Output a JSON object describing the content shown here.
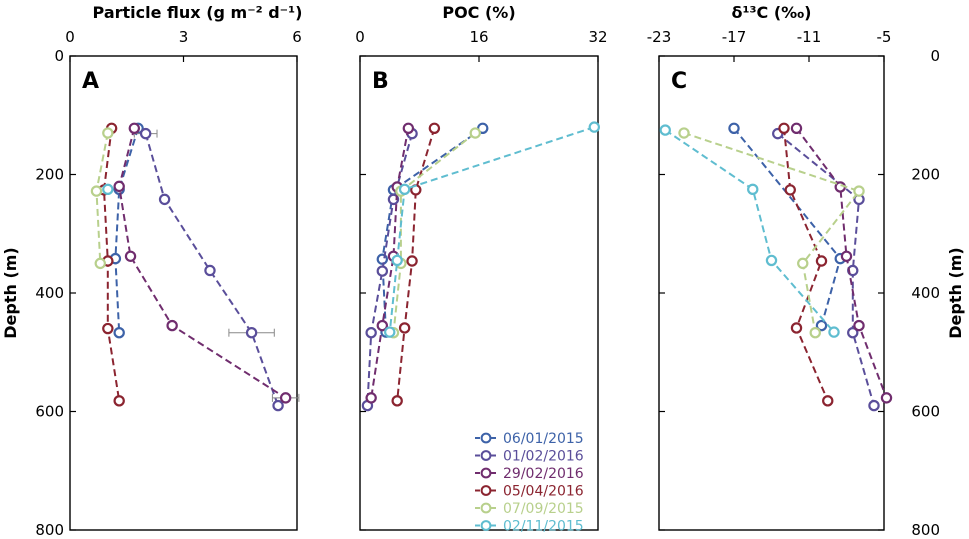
{
  "chart_data": {
    "type": "line",
    "ylabel": "Depth (m)",
    "ylim": [
      0,
      800
    ],
    "yticks": [
      0,
      200,
      400,
      600,
      800
    ],
    "yticklabels": [
      "0",
      "200",
      "400",
      "600",
      "800"
    ],
    "legend_location": "bottom-right of panel B",
    "series_meta": [
      {
        "name": "06/01/2015",
        "color": "#3d62a8"
      },
      {
        "name": "01/02/2016",
        "color": "#5a4e9a"
      },
      {
        "name": "29/02/2016",
        "color": "#702d6e"
      },
      {
        "name": "05/04/2016",
        "color": "#8b2430"
      },
      {
        "name": "07/09/2015",
        "color": "#b8d08c"
      },
      {
        "name": "02/11/2015",
        "color": "#5fbdd0"
      }
    ],
    "panels": [
      {
        "label": "A",
        "title": "Particle flux (g m⁻² d⁻¹)",
        "xlim": [
          0,
          6
        ],
        "xticks": [
          0,
          3,
          6
        ],
        "xticklabels": [
          "0",
          "3",
          "6"
        ],
        "series": [
          {
            "name": "06/01/2015",
            "points": [
              [
                1.8,
                122
              ],
              [
                1.3,
                225
              ],
              [
                1.2,
                342
              ],
              [
                1.3,
                467
              ]
            ]
          },
          {
            "name": "01/02/2016",
            "points": [
              [
                2.0,
                131
              ],
              [
                2.5,
                242
              ],
              [
                3.7,
                362
              ],
              [
                4.8,
                467
              ],
              [
                5.5,
                590
              ]
            ],
            "xerr": [
              0.3,
              0,
              0,
              0.6,
              0
            ]
          },
          {
            "name": "29/02/2016",
            "points": [
              [
                1.7,
                122
              ],
              [
                1.3,
                220
              ],
              [
                1.6,
                338
              ],
              [
                2.7,
                455
              ],
              [
                5.7,
                577
              ]
            ],
            "xerr": [
              0,
              0,
              0,
              0,
              0.35
            ]
          },
          {
            "name": "05/04/2016",
            "points": [
              [
                1.1,
                122
              ],
              [
                0.9,
                226
              ],
              [
                1.0,
                346
              ],
              [
                1.0,
                460
              ],
              [
                1.3,
                582
              ]
            ]
          },
          {
            "name": "07/09/2015",
            "points": [
              [
                1.0,
                130
              ],
              [
                0.7,
                228
              ],
              [
                0.8,
                350
              ]
            ]
          },
          {
            "name": "02/11/2015",
            "points": [
              [
                1.0,
                225
              ]
            ]
          }
        ]
      },
      {
        "label": "B",
        "title": "POC (%)",
        "xlim": [
          0,
          32
        ],
        "xticks": [
          0,
          16,
          32
        ],
        "xticklabels": [
          "0",
          "16",
          "32"
        ],
        "series": [
          {
            "name": "06/01/2015",
            "points": [
              [
                16.5,
                122
              ],
              [
                4.5,
                226
              ],
              [
                3.0,
                343
              ],
              [
                3.5,
                466
              ]
            ]
          },
          {
            "name": "01/02/2016",
            "points": [
              [
                7.0,
                131
              ],
              [
                4.5,
                242
              ],
              [
                3.0,
                363
              ],
              [
                1.5,
                467
              ],
              [
                1.0,
                590
              ]
            ]
          },
          {
            "name": "29/02/2016",
            "points": [
              [
                6.5,
                122
              ],
              [
                5.0,
                221
              ],
              [
                4.5,
                338
              ],
              [
                3.0,
                455
              ],
              [
                1.5,
                577
              ]
            ]
          },
          {
            "name": "05/04/2016",
            "points": [
              [
                10.0,
                122
              ],
              [
                7.5,
                226
              ],
              [
                7.0,
                346
              ],
              [
                6.0,
                459
              ],
              [
                5.0,
                582
              ]
            ]
          },
          {
            "name": "07/09/2015",
            "points": [
              [
                15.5,
                130
              ],
              [
                5.5,
                228
              ],
              [
                5.5,
                350
              ],
              [
                4.5,
                467
              ]
            ]
          },
          {
            "name": "02/11/2015",
            "points": [
              [
                31.5,
                120
              ],
              [
                6.0,
                225
              ],
              [
                5.0,
                345
              ],
              [
                4.0,
                466
              ]
            ]
          }
        ]
      },
      {
        "label": "C",
        "title": "δ¹³C (‰)",
        "xlim": [
          -23,
          -5
        ],
        "xticks": [
          -23,
          -17,
          -11,
          -5
        ],
        "xticklabels": [
          "-23",
          "-17",
          "-11",
          "-5"
        ],
        "series": [
          {
            "name": "06/01/2015",
            "points": [
              [
                -17.0,
                122
              ],
              [
                -8.5,
                342
              ],
              [
                -10.0,
                455
              ]
            ]
          },
          {
            "name": "01/02/2016",
            "points": [
              [
                -13.5,
                131
              ],
              [
                -7.0,
                242
              ],
              [
                -7.5,
                362
              ],
              [
                -7.5,
                467
              ],
              [
                -5.8,
                590
              ]
            ]
          },
          {
            "name": "29/02/2016",
            "points": [
              [
                -12.0,
                122
              ],
              [
                -8.5,
                221
              ],
              [
                -8.0,
                338
              ],
              [
                -7.0,
                455
              ],
              [
                -4.8,
                577
              ]
            ]
          },
          {
            "name": "05/04/2016",
            "points": [
              [
                -13.0,
                122
              ],
              [
                -12.5,
                226
              ],
              [
                -10.0,
                346
              ],
              [
                -12.0,
                459
              ],
              [
                -9.5,
                582
              ]
            ]
          },
          {
            "name": "07/09/2015",
            "points": [
              [
                -21.0,
                130
              ],
              [
                -7.0,
                228
              ],
              [
                -11.5,
                350
              ],
              [
                -10.5,
                467
              ]
            ]
          },
          {
            "name": "02/11/2015",
            "points": [
              [
                -22.5,
                125
              ],
              [
                -15.5,
                225
              ],
              [
                -14.0,
                345
              ],
              [
                -9.0,
                466
              ]
            ]
          }
        ]
      }
    ]
  }
}
